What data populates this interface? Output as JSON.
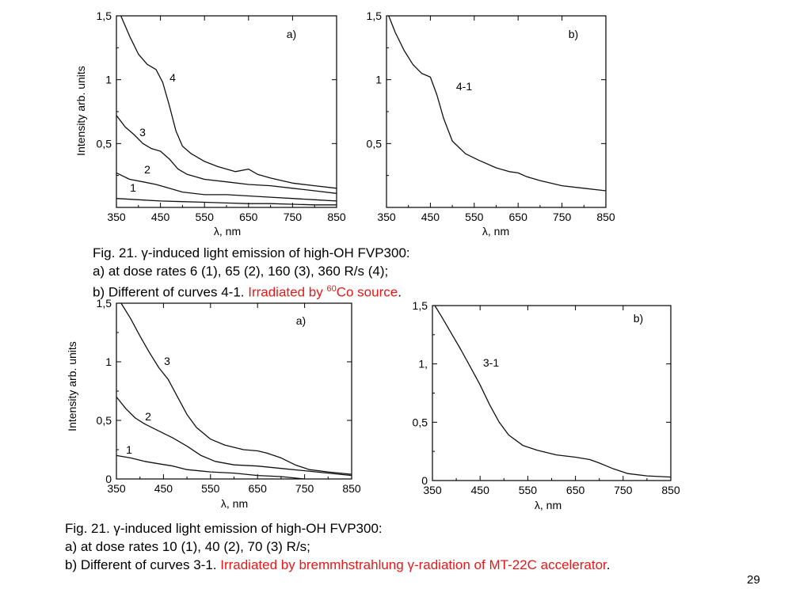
{
  "slide": {
    "page_number": "29"
  },
  "captions": {
    "top": {
      "line1": "Fig. 21. γ-induced light emission of high-OH FVP300:",
      "line2": "a) at dose rates 6 (1), 65 (2), 160 (3), 360 R/s (4);",
      "line3_prefix": "b) Different of curves 4-1. ",
      "line3_red_a": "Irradiated by ",
      "line3_sup": "60",
      "line3_red_b": "Co source",
      "line3_suffix": "."
    },
    "bottom": {
      "line1": "Fig. 21. γ-induced light emission of high-OH FVP300:",
      "line2": "a) at dose rates 10 (1), 40 (2), 70 (3) R/s;",
      "line3_prefix": "b) Different of curves 3-1. ",
      "line3_red": "Irradiated by bremmhstrahlung γ-radiation of MT-22C accelerator",
      "line3_suffix": "."
    }
  },
  "chart_data": [
    {
      "type": "line",
      "panel": "a)",
      "xlabel": "λ, nm",
      "ylabel": "Intensity arb. units",
      "xlim": [
        350,
        850
      ],
      "ylim": [
        0,
        1.5
      ],
      "xticks": [
        350,
        450,
        550,
        650,
        750,
        850
      ],
      "xtick_labels": [
        "350",
        "450",
        "550",
        "650",
        "750",
        "850"
      ],
      "yticks": [
        0.5,
        1,
        1.5
      ],
      "ytick_labels": [
        "0,5",
        "1",
        "1,5"
      ],
      "series": [
        {
          "name": "4",
          "x": [
            360,
            380,
            400,
            420,
            440,
            455,
            470,
            485,
            500,
            520,
            550,
            580,
            620,
            650,
            670,
            700,
            750,
            800,
            850
          ],
          "y": [
            1.5,
            1.34,
            1.2,
            1.12,
            1.08,
            0.98,
            0.8,
            0.6,
            0.48,
            0.42,
            0.36,
            0.32,
            0.28,
            0.3,
            0.26,
            0.23,
            0.19,
            0.17,
            0.15
          ]
        },
        {
          "name": "3",
          "x": [
            350,
            370,
            390,
            410,
            430,
            450,
            470,
            490,
            510,
            550,
            600,
            650,
            700,
            750,
            800,
            850
          ],
          "y": [
            0.72,
            0.63,
            0.57,
            0.5,
            0.46,
            0.44,
            0.38,
            0.3,
            0.26,
            0.22,
            0.2,
            0.18,
            0.17,
            0.15,
            0.13,
            0.11
          ]
        },
        {
          "name": "2",
          "x": [
            350,
            380,
            410,
            440,
            470,
            500,
            550,
            600,
            650,
            700,
            750,
            800,
            850
          ],
          "y": [
            0.27,
            0.22,
            0.2,
            0.18,
            0.15,
            0.12,
            0.1,
            0.1,
            0.09,
            0.08,
            0.07,
            0.06,
            0.05
          ]
        },
        {
          "name": "1",
          "x": [
            350,
            400,
            450,
            500,
            550,
            600,
            650,
            700,
            750,
            800,
            850
          ],
          "y": [
            0.07,
            0.06,
            0.05,
            0.045,
            0.04,
            0.035,
            0.03,
            0.03,
            0.025,
            0.02,
            0.02
          ]
        }
      ]
    },
    {
      "type": "line",
      "panel": "b)",
      "xlabel": "λ, nm",
      "ylabel": "",
      "xlim": [
        350,
        850
      ],
      "ylim": [
        0,
        1.5
      ],
      "xticks": [
        350,
        450,
        550,
        650,
        750,
        850
      ],
      "xtick_labels": [
        "350",
        "450",
        "550",
        "650",
        "750",
        "850"
      ],
      "yticks": [
        0.5,
        1,
        1.5
      ],
      "ytick_labels": [
        "0,5",
        "1",
        "1,5"
      ],
      "series": [
        {
          "name": "4-1",
          "x": [
            355,
            370,
            390,
            410,
            430,
            450,
            465,
            480,
            500,
            530,
            560,
            600,
            630,
            650,
            670,
            700,
            750,
            800,
            850
          ],
          "y": [
            1.5,
            1.37,
            1.23,
            1.12,
            1.05,
            1.02,
            0.88,
            0.7,
            0.52,
            0.42,
            0.37,
            0.31,
            0.28,
            0.27,
            0.24,
            0.21,
            0.17,
            0.15,
            0.13
          ]
        }
      ]
    },
    {
      "type": "line",
      "panel": "a)",
      "xlabel": "λ, nm",
      "ylabel": "Intensity arb. units",
      "xlim": [
        350,
        850
      ],
      "ylim": [
        0,
        1.5
      ],
      "xticks": [
        350,
        450,
        550,
        650,
        750,
        850
      ],
      "xtick_labels": [
        "350",
        "450",
        "550",
        "650",
        "750",
        "850"
      ],
      "yticks": [
        0,
        0.5,
        1,
        1.5
      ],
      "ytick_labels": [
        "0",
        "0,5",
        "1",
        "1,5"
      ],
      "series": [
        {
          "name": "3",
          "x": [
            360,
            380,
            400,
            420,
            440,
            460,
            480,
            500,
            520,
            550,
            580,
            620,
            650,
            670,
            700,
            730,
            760,
            800,
            850
          ],
          "y": [
            1.5,
            1.37,
            1.22,
            1.08,
            0.95,
            0.85,
            0.7,
            0.55,
            0.44,
            0.34,
            0.29,
            0.25,
            0.24,
            0.22,
            0.18,
            0.12,
            0.08,
            0.06,
            0.04
          ]
        },
        {
          "name": "2",
          "x": [
            350,
            370,
            390,
            410,
            430,
            450,
            470,
            500,
            530,
            560,
            600,
            650,
            700,
            750,
            800,
            850
          ],
          "y": [
            0.7,
            0.6,
            0.52,
            0.47,
            0.43,
            0.39,
            0.35,
            0.28,
            0.2,
            0.15,
            0.12,
            0.11,
            0.09,
            0.07,
            0.05,
            0.03
          ]
        },
        {
          "name": "1",
          "x": [
            350,
            380,
            410,
            440,
            470,
            500,
            550,
            600,
            650,
            700,
            750
          ],
          "y": [
            0.2,
            0.18,
            0.15,
            0.13,
            0.11,
            0.08,
            0.06,
            0.05,
            0.03,
            0.02,
            0.0
          ]
        }
      ]
    },
    {
      "type": "line",
      "panel": "b)",
      "xlabel": "λ, nm",
      "ylabel": "",
      "xlim": [
        350,
        850
      ],
      "ylim": [
        0,
        1.5
      ],
      "xticks": [
        350,
        450,
        550,
        650,
        750,
        850
      ],
      "xtick_labels": [
        "350",
        "450",
        "550",
        "650",
        "750",
        "850"
      ],
      "yticks": [
        0,
        0.5,
        1,
        1.5
      ],
      "ytick_labels": [
        "0",
        "0,5",
        "1,",
        "1,5"
      ],
      "series": [
        {
          "name": "3-1",
          "x": [
            355,
            370,
            390,
            410,
            430,
            450,
            470,
            490,
            510,
            540,
            570,
            610,
            650,
            680,
            700,
            730,
            760,
            800,
            850
          ],
          "y": [
            1.5,
            1.4,
            1.26,
            1.12,
            0.97,
            0.82,
            0.65,
            0.5,
            0.39,
            0.3,
            0.26,
            0.22,
            0.2,
            0.18,
            0.15,
            0.1,
            0.06,
            0.04,
            0.03
          ]
        }
      ]
    }
  ]
}
